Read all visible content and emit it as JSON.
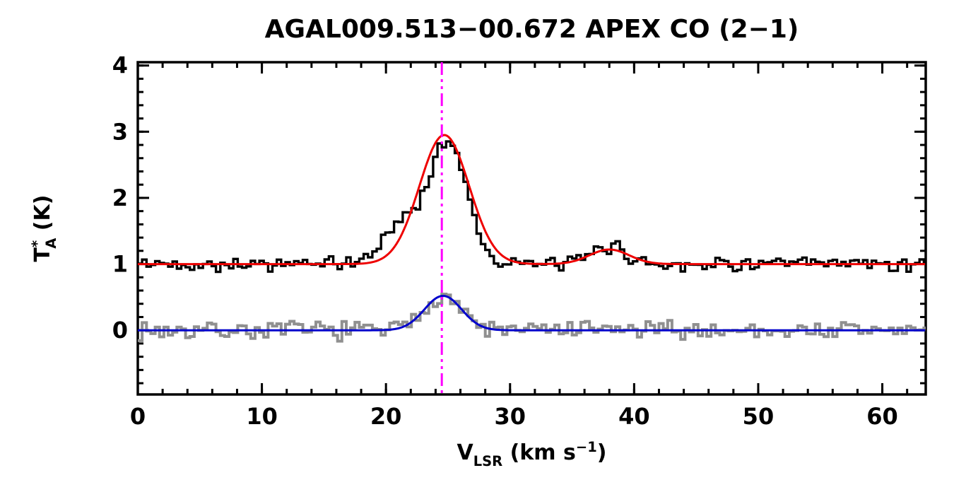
{
  "chart_data": {
    "type": "line",
    "title": "AGAL009.513−00.672  APEX CO (2−1)",
    "xlabel": {
      "symbol": "V",
      "symbol_sub": "LSR",
      "unit_prefix": " (km s",
      "unit_exponent": "−1",
      "unit_suffix": ")"
    },
    "ylabel": {
      "symbol": "T",
      "symbol_sup": "*",
      "symbol_sub": "A",
      "unit": " (K)"
    },
    "axes": {
      "xlim": [
        0,
        63.5
      ],
      "ylim": [
        -0.97,
        4.05
      ],
      "x_major_ticks": [
        0,
        10,
        20,
        30,
        40,
        50,
        60
      ],
      "x_minor_step": 2,
      "y_major_ticks": [
        0,
        1,
        2,
        3,
        4
      ],
      "y_minor_step": 0.2,
      "grid": false,
      "frame_color": "#000000"
    },
    "channel_width": 0.35,
    "marker_line": {
      "x": 24.5,
      "color": "#ff00ff",
      "style": "dash-dot-dot"
    },
    "series": [
      {
        "name": "observed-co-spectrum",
        "kind": "histogram",
        "color": "#000000",
        "line_width": 3.4,
        "baseline": 1.0,
        "noise_amp": 0.065,
        "noise_seed": 42,
        "components": [
          {
            "amp": 1.85,
            "center": 25.0,
            "sigma": 1.55
          },
          {
            "amp": 0.58,
            "center": 21.2,
            "sigma": 1.5
          },
          {
            "amp": 0.27,
            "center": 38.0,
            "sigma": 1.3
          }
        ]
      },
      {
        "name": "co-gaussian-fit",
        "kind": "model",
        "color": "#ee0000",
        "line_width": 3.0,
        "baseline": 1.0,
        "components": [
          {
            "amp": 1.95,
            "center": 24.7,
            "sigma": 2.0
          },
          {
            "amp": 0.22,
            "center": 38.0,
            "sigma": 1.6
          }
        ]
      },
      {
        "name": "offset-isotopologue-spectrum",
        "kind": "histogram",
        "color": "#909090",
        "line_width": 4.0,
        "baseline": 0.0,
        "noise_amp": 0.085,
        "noise_seed": 7,
        "components": [
          {
            "amp": 0.55,
            "center": 24.6,
            "sigma": 1.4
          }
        ]
      },
      {
        "name": "offset-gaussian-fit",
        "kind": "model",
        "color": "#0000cc",
        "line_width": 3.0,
        "baseline": 0.0,
        "components": [
          {
            "amp": 0.52,
            "center": 24.6,
            "sigma": 1.5
          }
        ]
      }
    ]
  }
}
